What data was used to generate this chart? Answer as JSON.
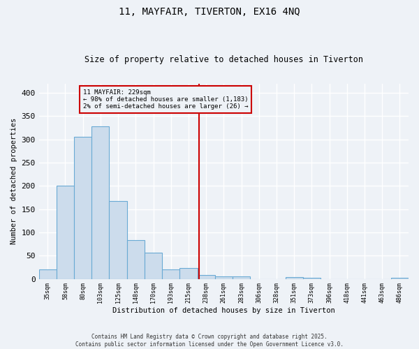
{
  "title1": "11, MAYFAIR, TIVERTON, EX16 4NQ",
  "title2": "Size of property relative to detached houses in Tiverton",
  "xlabel": "Distribution of detached houses by size in Tiverton",
  "ylabel": "Number of detached properties",
  "bar_labels": [
    "35sqm",
    "58sqm",
    "80sqm",
    "103sqm",
    "125sqm",
    "148sqm",
    "170sqm",
    "193sqm",
    "215sqm",
    "238sqm",
    "261sqm",
    "283sqm",
    "306sqm",
    "328sqm",
    "351sqm",
    "373sqm",
    "396sqm",
    "418sqm",
    "441sqm",
    "463sqm",
    "486sqm"
  ],
  "bar_values": [
    20,
    200,
    305,
    328,
    168,
    83,
    57,
    20,
    23,
    8,
    5,
    6,
    0,
    0,
    4,
    3,
    0,
    0,
    0,
    0,
    2
  ],
  "bar_color": "#ccdcec",
  "bar_edge_color": "#6aaad4",
  "annotation_line1": "11 MAYFAIR: 229sqm",
  "annotation_line2": "← 98% of detached houses are smaller (1,183)",
  "annotation_line3": "2% of semi-detached houses are larger (26) →",
  "vline_color": "#cc0000",
  "ylim": [
    0,
    420
  ],
  "yticks": [
    0,
    50,
    100,
    150,
    200,
    250,
    300,
    350,
    400
  ],
  "footer1": "Contains HM Land Registry data © Crown copyright and database right 2025.",
  "footer2": "Contains public sector information licensed under the Open Government Licence v3.0.",
  "bg_color": "#eef2f7",
  "grid_color": "#ffffff",
  "annotation_box_color": "#cc0000"
}
